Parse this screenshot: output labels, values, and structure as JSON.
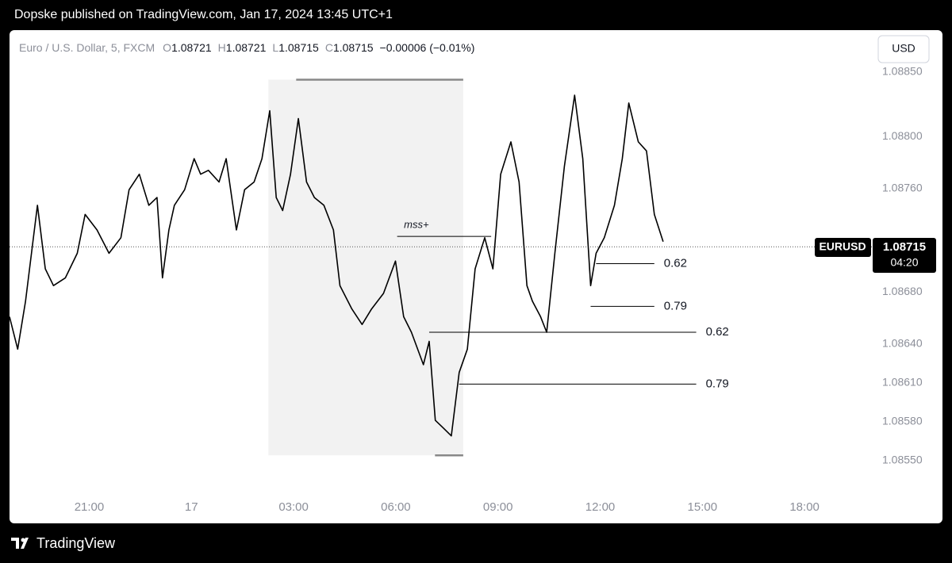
{
  "header": {
    "published": "Dopske published on TradingView.com, Jan 17, 2024 13:45 UTC+1"
  },
  "footer": {
    "brand": "TradingView"
  },
  "currency_button": "USD",
  "chart_data": {
    "type": "line",
    "symbol": "Euro / U.S. Dollar, 5, FXCM",
    "ohlc": [
      {
        "key": "O",
        "value": 1.08721
      },
      {
        "key": "H",
        "value": 1.08721
      },
      {
        "key": "L",
        "value": 1.08715
      },
      {
        "key": "C",
        "value": 1.08715
      }
    ],
    "change": "−0.00006 (−0.01%)",
    "series": [
      {
        "name": "EURUSD",
        "color": "#000000",
        "x": [
          18.66,
          18.9,
          19.13,
          19.36,
          19.48,
          19.71,
          19.95,
          20.3,
          20.65,
          20.88,
          21.23,
          21.58,
          21.93,
          22.17,
          22.47,
          22.75,
          22.99,
          23.15,
          23.34,
          23.5,
          23.8,
          24.08,
          24.27,
          24.5,
          24.81,
          25.02,
          25.32,
          25.56,
          25.84,
          26.07,
          26.3,
          26.49,
          26.68,
          26.91,
          27.14,
          27.38,
          27.61,
          27.89,
          28.17,
          28.36,
          28.71,
          29.01,
          29.29,
          29.64,
          29.99,
          30.23,
          30.46,
          30.81,
          30.98,
          31.16,
          31.4,
          31.63,
          31.86,
          32.1,
          32.33,
          32.61,
          32.85,
          33.08,
          33.38,
          33.62,
          33.85,
          34.01,
          34.25,
          34.43,
          34.67,
          34.95,
          35.25,
          35.49,
          35.72,
          35.88,
          36.12,
          36.42,
          36.65,
          36.84,
          37.12,
          37.36,
          37.59,
          37.85
        ],
        "values": [
          1.08661,
          1.08636,
          1.08673,
          1.08722,
          1.08747,
          1.08698,
          1.08685,
          1.08691,
          1.0871,
          1.0874,
          1.08728,
          1.0871,
          1.08722,
          1.08759,
          1.08771,
          1.08747,
          1.08753,
          1.08691,
          1.08728,
          1.08747,
          1.08759,
          1.08783,
          1.08771,
          1.08774,
          1.08765,
          1.08783,
          1.08728,
          1.08759,
          1.08765,
          1.08783,
          1.0882,
          1.08753,
          1.08743,
          1.08771,
          1.08814,
          1.08765,
          1.08753,
          1.08747,
          1.08728,
          1.08685,
          1.08667,
          1.08655,
          1.08667,
          1.08679,
          1.08704,
          1.08661,
          1.08649,
          1.08624,
          1.08642,
          1.08581,
          1.08575,
          1.08569,
          1.08618,
          1.08636,
          1.08698,
          1.08722,
          1.08698,
          1.08771,
          1.08796,
          1.08765,
          1.08685,
          1.08673,
          1.08661,
          1.08649,
          1.0871,
          1.08777,
          1.08832,
          1.08783,
          1.08685,
          1.0871,
          1.08722,
          1.08747,
          1.08783,
          1.08826,
          1.08796,
          1.08789,
          1.0874,
          1.08719
        ]
      }
    ],
    "last_price": 1.08715,
    "countdown": "04:20",
    "range_box": {
      "x": [
        26.26,
        31.98
      ],
      "y": [
        1.08554,
        1.08844
      ]
    },
    "mss": {
      "label": "mss+",
      "value": 1.08723,
      "x": [
        30.04,
        32.8
      ]
    },
    "levels": [
      {
        "label": "0.62",
        "value": 1.08702,
        "x": [
          35.88,
          37.59
        ]
      },
      {
        "label": "0.79",
        "value": 1.08669,
        "x": [
          35.72,
          37.59
        ]
      },
      {
        "label": "0.62",
        "value": 1.08649,
        "x": [
          30.98,
          38.82
        ]
      },
      {
        "label": "0.79",
        "value": 1.08609,
        "x": [
          31.86,
          38.82
        ]
      }
    ],
    "xlim": [
      18.66,
      44.0
    ],
    "ylim": [
      1.08526,
      1.08881
    ],
    "xticks": [
      {
        "value": 21,
        "label": "21:00"
      },
      {
        "value": 24,
        "label": "17"
      },
      {
        "value": 27,
        "label": "03:00"
      },
      {
        "value": 30,
        "label": "06:00"
      },
      {
        "value": 33,
        "label": "09:00"
      },
      {
        "value": 36,
        "label": "12:00"
      },
      {
        "value": 39,
        "label": "15:00"
      },
      {
        "value": 42,
        "label": "18:00"
      }
    ],
    "yticks": [
      {
        "value": 1.0855,
        "label": "1.08550"
      },
      {
        "value": 1.0858,
        "label": "1.08580"
      },
      {
        "value": 1.0861,
        "label": "1.08610"
      },
      {
        "value": 1.0864,
        "label": "1.08640"
      },
      {
        "value": 1.0868,
        "label": "1.08680"
      },
      {
        "value": 1.0876,
        "label": "1.08760"
      },
      {
        "value": 1.088,
        "label": "1.08800"
      },
      {
        "value": 1.0885,
        "label": "1.08850"
      }
    ],
    "grid": false
  }
}
